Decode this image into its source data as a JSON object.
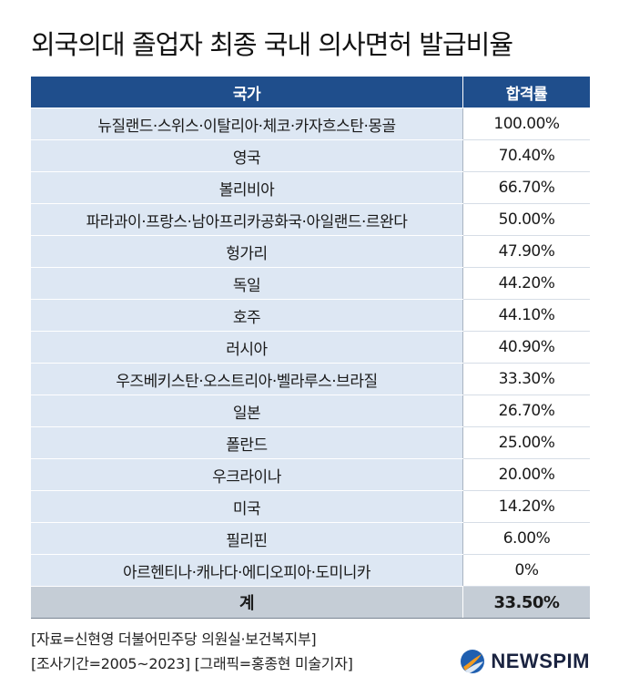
{
  "title": "외국의대 졸업자 최종 국내 의사면허 발급비율",
  "chart_data": {
    "type": "table",
    "columns": [
      "국가",
      "합격률"
    ],
    "rows": [
      {
        "country": "뉴질랜드·스위스·이탈리아·체코·카자흐스탄·몽골",
        "rate": "100.00%"
      },
      {
        "country": "영국",
        "rate": "70.40%"
      },
      {
        "country": "볼리비아",
        "rate": "66.70%"
      },
      {
        "country": "파라과이·프랑스·남아프리카공화국·아일랜드·르완다",
        "rate": "50.00%"
      },
      {
        "country": "헝가리",
        "rate": "47.90%"
      },
      {
        "country": "독일",
        "rate": "44.20%"
      },
      {
        "country": "호주",
        "rate": "44.10%"
      },
      {
        "country": "러시아",
        "rate": "40.90%"
      },
      {
        "country": "우즈베키스탄·오스트리아·벨라루스·브라질",
        "rate": "33.30%"
      },
      {
        "country": "일본",
        "rate": "26.70%"
      },
      {
        "country": "폴란드",
        "rate": "25.00%"
      },
      {
        "country": "우크라이나",
        "rate": "20.00%"
      },
      {
        "country": "미국",
        "rate": "14.20%"
      },
      {
        "country": "필리핀",
        "rate": "6.00%"
      },
      {
        "country": "아르헨티나·캐나다·에디오피아·도미니카",
        "rate": "0%"
      }
    ],
    "total": {
      "label": "계",
      "rate": "33.50%"
    }
  },
  "footer": {
    "source": "[자료=신현영 더불어민주당 의원실·보건복지부]",
    "period": "[조사기간=2005~2023] [그래픽=홍종현 미술기자]"
  },
  "logo": {
    "text": "NEWSPIM",
    "icon": "newspim-logo-icon"
  },
  "colors": {
    "header": "#1f4e8c",
    "row": "#dde7f3",
    "total": "#c5cdd6"
  }
}
